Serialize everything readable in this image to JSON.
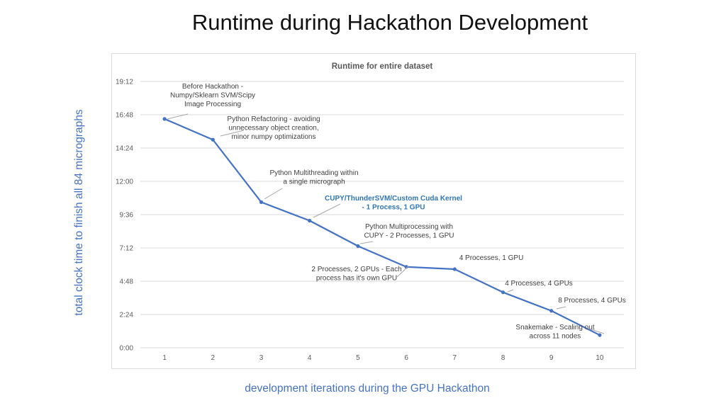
{
  "slide": {
    "title": "Runtime during Hackathon Development",
    "y_caption": "total clock time to finish all 84 micrographs",
    "x_caption": "development iterations during the GPU Hackathon"
  },
  "chart_data": {
    "type": "line",
    "title": "Runtime for entire dataset",
    "xlabel": "development iterations during the GPU Hackathon",
    "ylabel": "total clock time to finish all 84 micrographs",
    "x": [
      1,
      2,
      3,
      4,
      5,
      6,
      7,
      8,
      9,
      10
    ],
    "series": [
      {
        "values": [
          "16:30",
          "15:00",
          "10:30",
          "9:10",
          "7:20",
          "5:50",
          "5:40",
          "4:00",
          "2:40",
          "0:55"
        ]
      }
    ],
    "y_tick_labels": [
      "0:00",
      "2:24",
      "4:48",
      "7:12",
      "9:36",
      "12:00",
      "14:24",
      "16:48",
      "19:12"
    ],
    "y_range": [
      "0:00",
      "19:12"
    ],
    "x_tick_labels": [
      "1",
      "2",
      "3",
      "4",
      "5",
      "6",
      "7",
      "8",
      "9",
      "10"
    ],
    "grid": true,
    "line_color": "#4472c4",
    "highlight_color": "#2e75b6",
    "annotations": [
      {
        "point": 1,
        "lines": [
          "Before Hackathon -",
          "Numpy/Sklearn SVM/Scipy",
          "Image Processing"
        ],
        "highlight": false
      },
      {
        "point": 2,
        "lines": [
          "Python Refactoring - avoiding",
          "unnecessary object creation,",
          "minor numpy optimizations"
        ],
        "highlight": false
      },
      {
        "point": 3,
        "lines": [
          "Python Multithreading within",
          "a single micrograph"
        ],
        "highlight": false
      },
      {
        "point": 4,
        "lines": [
          "CUPY/ThunderSVM/Custom Cuda Kernel",
          "- 1 Process,  1 GPU"
        ],
        "highlight": true
      },
      {
        "point": 5,
        "lines": [
          "Python Multiprocessing with",
          "CUPY - 2 Processes, 1 GPU"
        ],
        "highlight": false
      },
      {
        "point": 6,
        "lines": [
          "2 Processes, 2 GPUs - Each",
          "process has it's own GPU"
        ],
        "highlight": false
      },
      {
        "point": 7,
        "lines": [
          "4 Processes,  1 GPU"
        ],
        "highlight": false
      },
      {
        "point": 8,
        "lines": [
          "4 Processes, 4 GPUs"
        ],
        "highlight": false
      },
      {
        "point": 9,
        "lines": [
          "8 Processes, 4 GPUs"
        ],
        "highlight": false
      },
      {
        "point": 10,
        "lines": [
          "Snakemake - Scaling out",
          "across 11 nodes"
        ],
        "highlight": false
      }
    ]
  }
}
